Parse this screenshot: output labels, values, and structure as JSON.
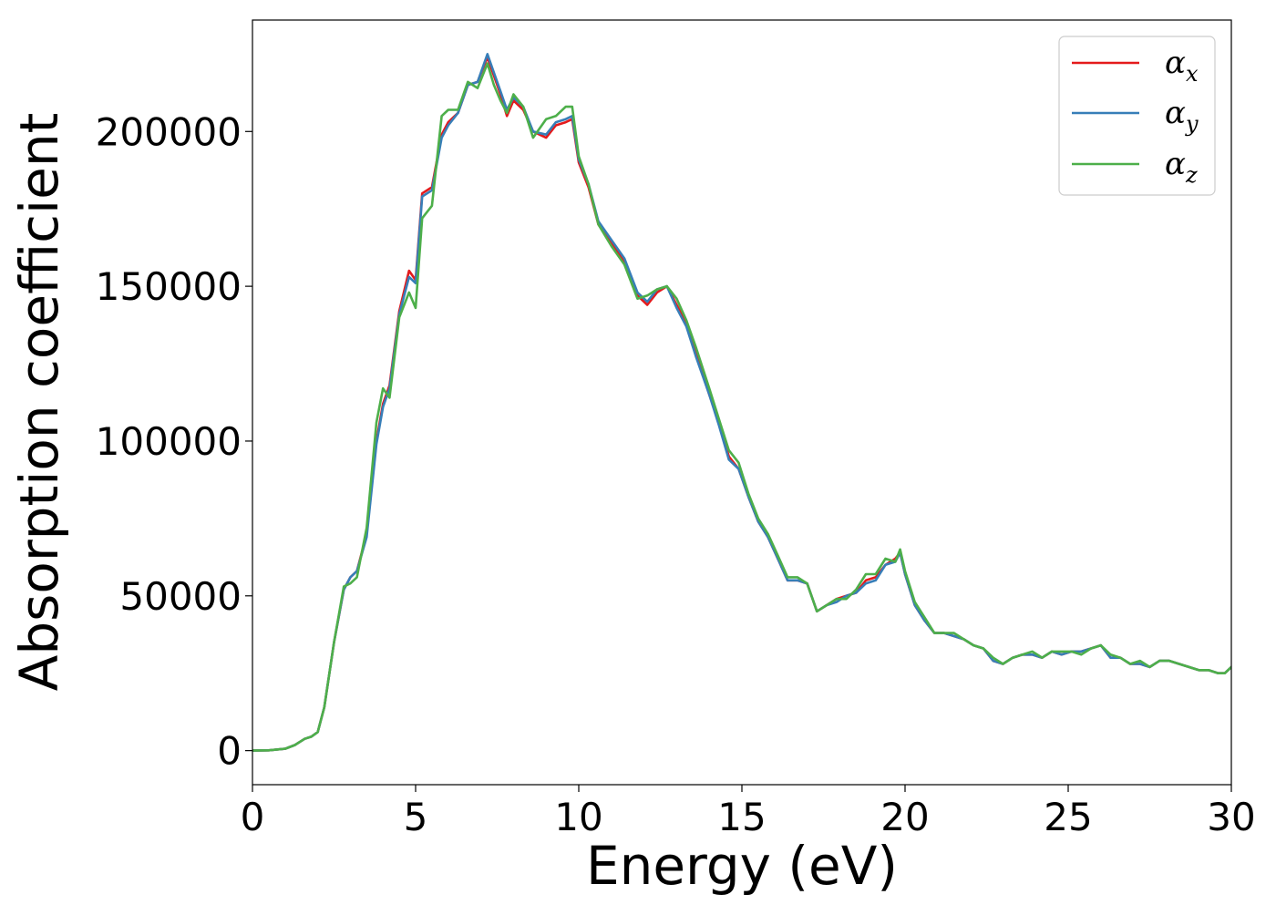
{
  "chart_data": {
    "type": "line",
    "title": "",
    "xlabel": "Energy (eV)",
    "ylabel": "Absorption coefficient",
    "xlim": [
      0,
      30
    ],
    "ylim": [
      -11000,
      236000
    ],
    "xticks": [
      0,
      5,
      10,
      15,
      20,
      25,
      30
    ],
    "xtick_labels": [
      "0",
      "5",
      "10",
      "15",
      "20",
      "25",
      "30"
    ],
    "yticks": [
      0,
      50000,
      100000,
      150000,
      200000
    ],
    "ytick_labels": [
      "0",
      "50000",
      "100000",
      "150000",
      "200000"
    ],
    "grid": false,
    "legend_position": "top-right",
    "series": [
      {
        "name": "αx",
        "legend_symbol": "α",
        "legend_subscript": "x",
        "color": "#e41a1c",
        "x": [
          0,
          0.5,
          1.0,
          1.3,
          1.6,
          1.8,
          2.0,
          2.2,
          2.5,
          2.8,
          3.0,
          3.2,
          3.5,
          3.8,
          4.0,
          4.2,
          4.5,
          4.8,
          5.0,
          5.2,
          5.5,
          5.8,
          6.0,
          6.3,
          6.6,
          6.9,
          7.2,
          7.4,
          7.6,
          7.8,
          8.0,
          8.3,
          8.6,
          9.0,
          9.3,
          9.6,
          9.8,
          10.0,
          10.3,
          10.6,
          11.0,
          11.4,
          11.8,
          12.1,
          12.4,
          12.7,
          13.0,
          13.3,
          13.6,
          14.0,
          14.3,
          14.6,
          14.9,
          15.2,
          15.5,
          15.8,
          16.1,
          16.4,
          16.7,
          17.0,
          17.3,
          17.6,
          17.9,
          18.2,
          18.5,
          18.8,
          19.1,
          19.4,
          19.7,
          19.85,
          20.0,
          20.3,
          20.6,
          20.9,
          21.2,
          21.5,
          21.8,
          22.1,
          22.4,
          22.7,
          23.0,
          23.3,
          23.6,
          23.9,
          24.2,
          24.5,
          24.8,
          25.1,
          25.4,
          25.7,
          26.0,
          26.3,
          26.6,
          26.9,
          27.2,
          27.5,
          27.8,
          28.1,
          28.4,
          28.7,
          29.0,
          29.3,
          29.6,
          29.8,
          30.0
        ],
        "y": [
          0,
          100,
          600,
          1800,
          3800,
          4500,
          6000,
          14000,
          35000,
          52000,
          56000,
          58000,
          70000,
          100000,
          112000,
          118000,
          142000,
          155000,
          152000,
          180000,
          182000,
          199000,
          203000,
          206000,
          215000,
          216000,
          224000,
          218000,
          212000,
          205000,
          210000,
          207000,
          200000,
          198000,
          202000,
          203000,
          204000,
          190000,
          182000,
          170000,
          164000,
          158000,
          147000,
          144000,
          148000,
          150000,
          144000,
          138000,
          128000,
          115000,
          106000,
          95000,
          91000,
          82000,
          74000,
          69000,
          62000,
          55000,
          55000,
          54000,
          45000,
          47000,
          49000,
          50000,
          51000,
          55000,
          56000,
          60000,
          62000,
          64000,
          57000,
          47000,
          42000,
          38000,
          38000,
          37000,
          36000,
          34000,
          33000,
          29000,
          28000,
          30000,
          31000,
          31000,
          30000,
          32000,
          31000,
          32000,
          32000,
          33000,
          34000,
          30000,
          30000,
          28000,
          28000,
          27000,
          29000,
          29000,
          28000,
          27000,
          26000,
          26000,
          25000,
          25000,
          27000
        ]
      },
      {
        "name": "αy",
        "legend_symbol": "α",
        "legend_subscript": "y",
        "color": "#377eb8",
        "x": [
          0,
          0.5,
          1.0,
          1.3,
          1.6,
          1.8,
          2.0,
          2.2,
          2.5,
          2.8,
          3.0,
          3.2,
          3.5,
          3.8,
          4.0,
          4.2,
          4.5,
          4.8,
          5.0,
          5.2,
          5.5,
          5.8,
          6.0,
          6.3,
          6.6,
          6.9,
          7.2,
          7.4,
          7.6,
          7.8,
          8.0,
          8.3,
          8.6,
          9.0,
          9.3,
          9.6,
          9.8,
          10.0,
          10.3,
          10.6,
          11.0,
          11.4,
          11.8,
          12.1,
          12.4,
          12.7,
          13.0,
          13.3,
          13.6,
          14.0,
          14.3,
          14.6,
          14.9,
          15.2,
          15.5,
          15.8,
          16.1,
          16.4,
          16.7,
          17.0,
          17.3,
          17.6,
          17.9,
          18.2,
          18.5,
          18.8,
          19.1,
          19.4,
          19.7,
          19.85,
          20.0,
          20.3,
          20.6,
          20.9,
          21.2,
          21.5,
          21.8,
          22.1,
          22.4,
          22.7,
          23.0,
          23.3,
          23.6,
          23.9,
          24.2,
          24.5,
          24.8,
          25.1,
          25.4,
          25.7,
          26.0,
          26.3,
          26.6,
          26.9,
          27.2,
          27.5,
          27.8,
          28.1,
          28.4,
          28.7,
          29.0,
          29.3,
          29.6,
          29.8,
          30.0
        ],
        "y": [
          0,
          100,
          600,
          1800,
          3800,
          4500,
          6000,
          14000,
          35000,
          52000,
          56000,
          58000,
          69000,
          99000,
          111000,
          117000,
          141000,
          153000,
          151000,
          179000,
          181000,
          198000,
          202000,
          206000,
          215000,
          216000,
          225000,
          219000,
          213000,
          207000,
          211000,
          208000,
          200000,
          199000,
          203000,
          204000,
          205000,
          191000,
          183000,
          171000,
          165000,
          159000,
          148000,
          145000,
          149000,
          150000,
          143000,
          137000,
          127000,
          115000,
          105000,
          94000,
          91000,
          82000,
          74000,
          69000,
          62000,
          55000,
          55000,
          54000,
          45000,
          47000,
          48000,
          50000,
          51000,
          54000,
          55000,
          60000,
          61000,
          64000,
          57000,
          47000,
          42000,
          38000,
          38000,
          37000,
          36000,
          34000,
          33000,
          29000,
          28000,
          30000,
          31000,
          31000,
          30000,
          32000,
          31000,
          32000,
          32000,
          33000,
          34000,
          30000,
          30000,
          28000,
          28000,
          27000,
          29000,
          29000,
          28000,
          27000,
          26000,
          26000,
          25000,
          25000,
          27000
        ]
      },
      {
        "name": "αz",
        "legend_symbol": "α",
        "legend_subscript": "z",
        "color": "#4daf4a",
        "x": [
          0,
          0.5,
          1.0,
          1.3,
          1.6,
          1.8,
          2.0,
          2.2,
          2.5,
          2.8,
          3.0,
          3.2,
          3.5,
          3.8,
          4.0,
          4.2,
          4.5,
          4.8,
          5.0,
          5.2,
          5.5,
          5.8,
          6.0,
          6.3,
          6.6,
          6.9,
          7.2,
          7.4,
          7.6,
          7.8,
          8.0,
          8.3,
          8.6,
          9.0,
          9.3,
          9.6,
          9.8,
          10.0,
          10.3,
          10.6,
          11.0,
          11.4,
          11.8,
          12.1,
          12.4,
          12.7,
          13.0,
          13.3,
          13.6,
          14.0,
          14.3,
          14.6,
          14.9,
          15.2,
          15.5,
          15.8,
          16.1,
          16.4,
          16.7,
          17.0,
          17.3,
          17.6,
          17.9,
          18.2,
          18.5,
          18.8,
          19.1,
          19.4,
          19.7,
          19.85,
          20.0,
          20.3,
          20.6,
          20.9,
          21.2,
          21.5,
          21.8,
          22.1,
          22.4,
          22.7,
          23.0,
          23.3,
          23.6,
          23.9,
          24.2,
          24.5,
          24.8,
          25.1,
          25.4,
          25.7,
          26.0,
          26.3,
          26.6,
          26.9,
          27.2,
          27.5,
          27.8,
          28.1,
          28.4,
          28.7,
          29.0,
          29.3,
          29.6,
          29.8,
          30.0
        ],
        "y": [
          0,
          100,
          600,
          1800,
          3800,
          4500,
          6000,
          14000,
          35000,
          53000,
          54000,
          56000,
          72000,
          106000,
          117000,
          114000,
          140000,
          148000,
          143000,
          172000,
          176000,
          205000,
          207000,
          207000,
          216000,
          214000,
          222000,
          215000,
          210000,
          206000,
          212000,
          208000,
          198000,
          204000,
          205000,
          208000,
          208000,
          192000,
          183000,
          170000,
          163000,
          157000,
          146000,
          147000,
          149000,
          150000,
          146000,
          139000,
          130000,
          117000,
          107000,
          97000,
          93000,
          83000,
          75000,
          70000,
          63000,
          56000,
          56000,
          54000,
          45000,
          47000,
          49000,
          49000,
          52000,
          57000,
          57000,
          62000,
          61000,
          65000,
          58000,
          48000,
          43000,
          38000,
          38000,
          38000,
          36000,
          34000,
          33000,
          30000,
          28000,
          30000,
          31000,
          32000,
          30000,
          32000,
          32000,
          32000,
          31000,
          33000,
          34000,
          31000,
          30000,
          28000,
          29000,
          27000,
          29000,
          29000,
          28000,
          27000,
          26000,
          26000,
          25000,
          25000,
          27000
        ]
      }
    ]
  }
}
